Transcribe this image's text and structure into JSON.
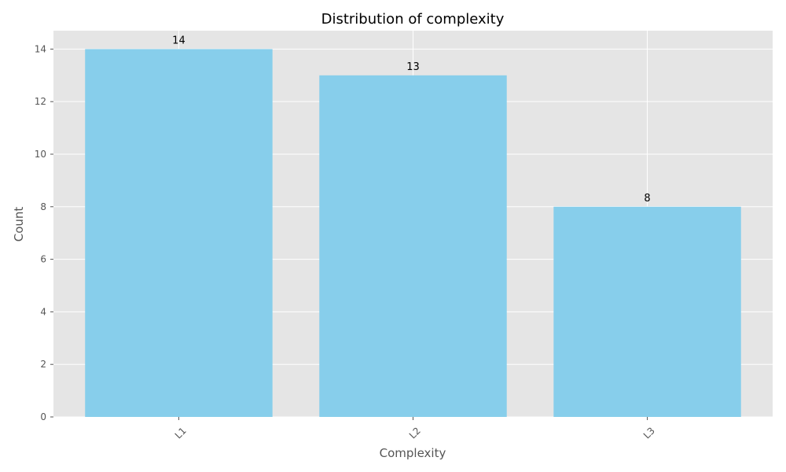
{
  "chart_data": {
    "type": "bar",
    "title": "Distribution of complexity",
    "xlabel": "Complexity",
    "ylabel": "Count",
    "categories": [
      "L1",
      "L2",
      "L3"
    ],
    "values": [
      14,
      13,
      8
    ],
    "data_labels": [
      "14",
      "13",
      "8"
    ],
    "ylim": [
      0,
      14.7
    ],
    "yticks": [
      0,
      2,
      4,
      6,
      8,
      10,
      12,
      14
    ],
    "ytick_labels": [
      "0",
      "2",
      "4",
      "6",
      "8",
      "10",
      "12",
      "14"
    ],
    "grid": true,
    "legend": "none",
    "x_tick_rotation_deg": 45
  },
  "colors": {
    "bar": "#87CEEB",
    "plot_background": "#E5E5E5",
    "grid": "#FFFFFF"
  }
}
